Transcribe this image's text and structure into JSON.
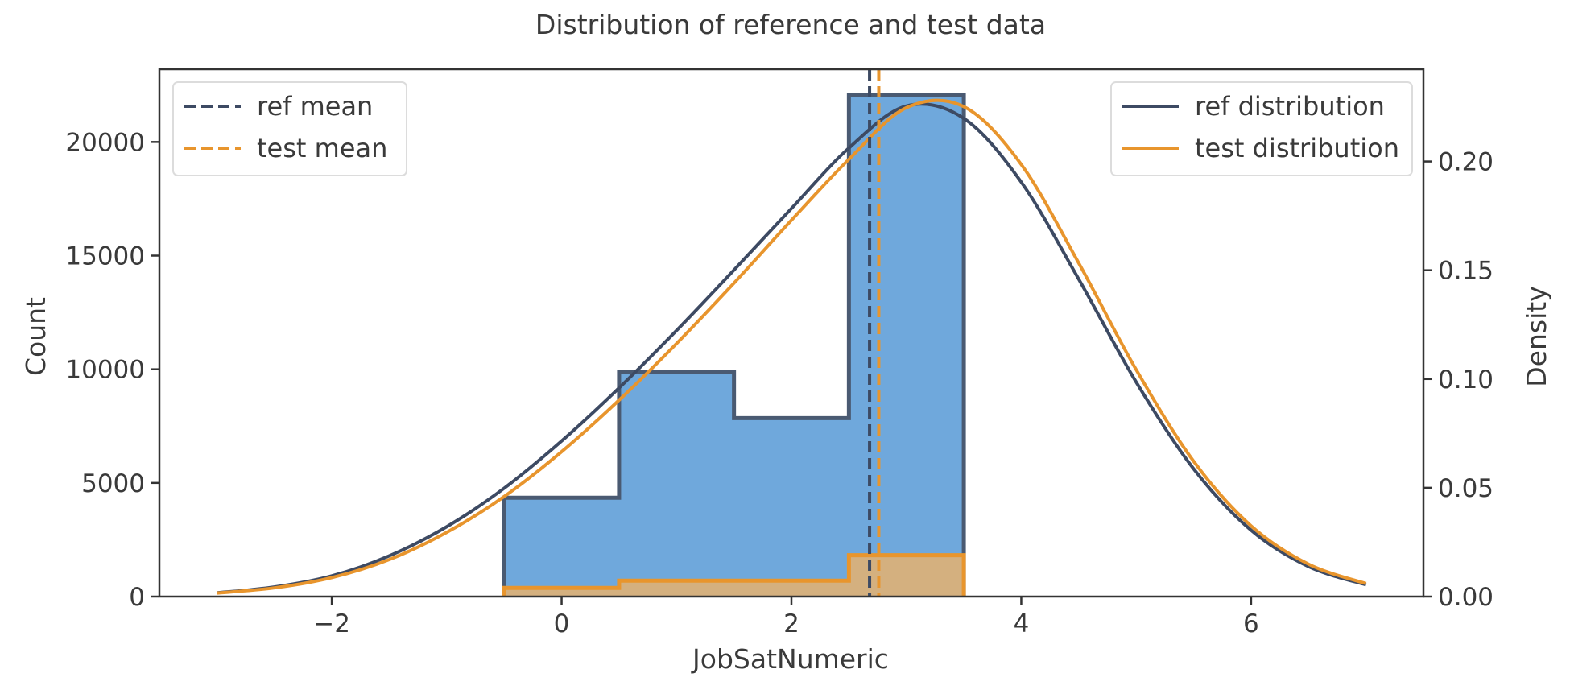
{
  "chart_data": {
    "type": "histogram+kde",
    "title": "Distribution of reference and test data",
    "xlabel": "JobSatNumeric",
    "ylabel": "Count",
    "y2label": "Density",
    "xlim": [
      -3.5,
      7.5
    ],
    "ylim": [
      0,
      23200
    ],
    "y2lim": [
      0,
      0.2424
    ],
    "x_ticks": [
      -2,
      0,
      2,
      4,
      6
    ],
    "x_tick_labels": [
      "−2",
      "0",
      "2",
      "4",
      "6"
    ],
    "y_ticks": [
      0,
      5000,
      10000,
      15000,
      20000
    ],
    "y_tick_labels": [
      "0",
      "5000",
      "10000",
      "15000",
      "20000"
    ],
    "y2_ticks": [
      0.0,
      0.05,
      0.1,
      0.15,
      0.2
    ],
    "y2_tick_labels": [
      "0.00",
      "0.05",
      "0.10",
      "0.15",
      "0.20"
    ],
    "grid": false,
    "histograms": [
      {
        "name": "ref",
        "bin_edges": [
          -0.5,
          0.5,
          1.5,
          2.5,
          3.5
        ],
        "counts": [
          4350,
          9900,
          7850,
          22050
        ],
        "fill": "#6fa8dc",
        "edge": "#4a5a72"
      },
      {
        "name": "test",
        "bin_edges": [
          -0.5,
          0.5,
          1.5,
          2.5,
          3.5
        ],
        "counts": [
          380,
          700,
          700,
          1820
        ],
        "fill": "#d4b07f",
        "edge": "#e8952d"
      }
    ],
    "kde": [
      {
        "name": "ref distribution",
        "color": "#3d4a63",
        "x": [
          -3.0,
          -2.5,
          -2.0,
          -1.5,
          -1.0,
          -0.5,
          0.0,
          0.5,
          1.0,
          1.5,
          2.0,
          2.5,
          3.0,
          3.5,
          4.0,
          4.5,
          5.0,
          5.5,
          6.0,
          6.5,
          7.0
        ],
        "y": [
          0.0017,
          0.0044,
          0.0095,
          0.0187,
          0.0321,
          0.0498,
          0.0715,
          0.0959,
          0.1223,
          0.1501,
          0.1784,
          0.2062,
          0.2255,
          0.2198,
          0.1905,
          0.1459,
          0.0986,
          0.0587,
          0.0305,
          0.0138,
          0.0054
        ]
      },
      {
        "name": "test distribution",
        "color": "#e8952d",
        "x": [
          -3.0,
          -2.5,
          -2.0,
          -1.5,
          -1.0,
          -0.5,
          0.0,
          0.5,
          1.0,
          1.5,
          2.0,
          2.5,
          3.0,
          3.5,
          4.0,
          4.5,
          5.0,
          5.5,
          6.0,
          6.5,
          7.0
        ],
        "y": [
          0.0016,
          0.004,
          0.0087,
          0.017,
          0.0295,
          0.046,
          0.0666,
          0.0903,
          0.1163,
          0.1441,
          0.173,
          0.201,
          0.2247,
          0.2252,
          0.1986,
          0.1533,
          0.1043,
          0.0622,
          0.0325,
          0.0149,
          0.006
        ]
      }
    ],
    "means": [
      {
        "name": "ref mean",
        "x": 2.68,
        "color": "#3d4a63"
      },
      {
        "name": "test mean",
        "x": 2.76,
        "color": "#e8952d"
      }
    ],
    "legends": {
      "top-left": [
        {
          "label": "ref mean",
          "color": "#3d4a63",
          "style": "dashed"
        },
        {
          "label": "test mean",
          "color": "#e8952d",
          "style": "dashed"
        }
      ],
      "top-right": [
        {
          "label": "ref distribution",
          "color": "#3d4a63",
          "style": "solid"
        },
        {
          "label": "test distribution",
          "color": "#e8952d",
          "style": "solid"
        }
      ]
    }
  }
}
